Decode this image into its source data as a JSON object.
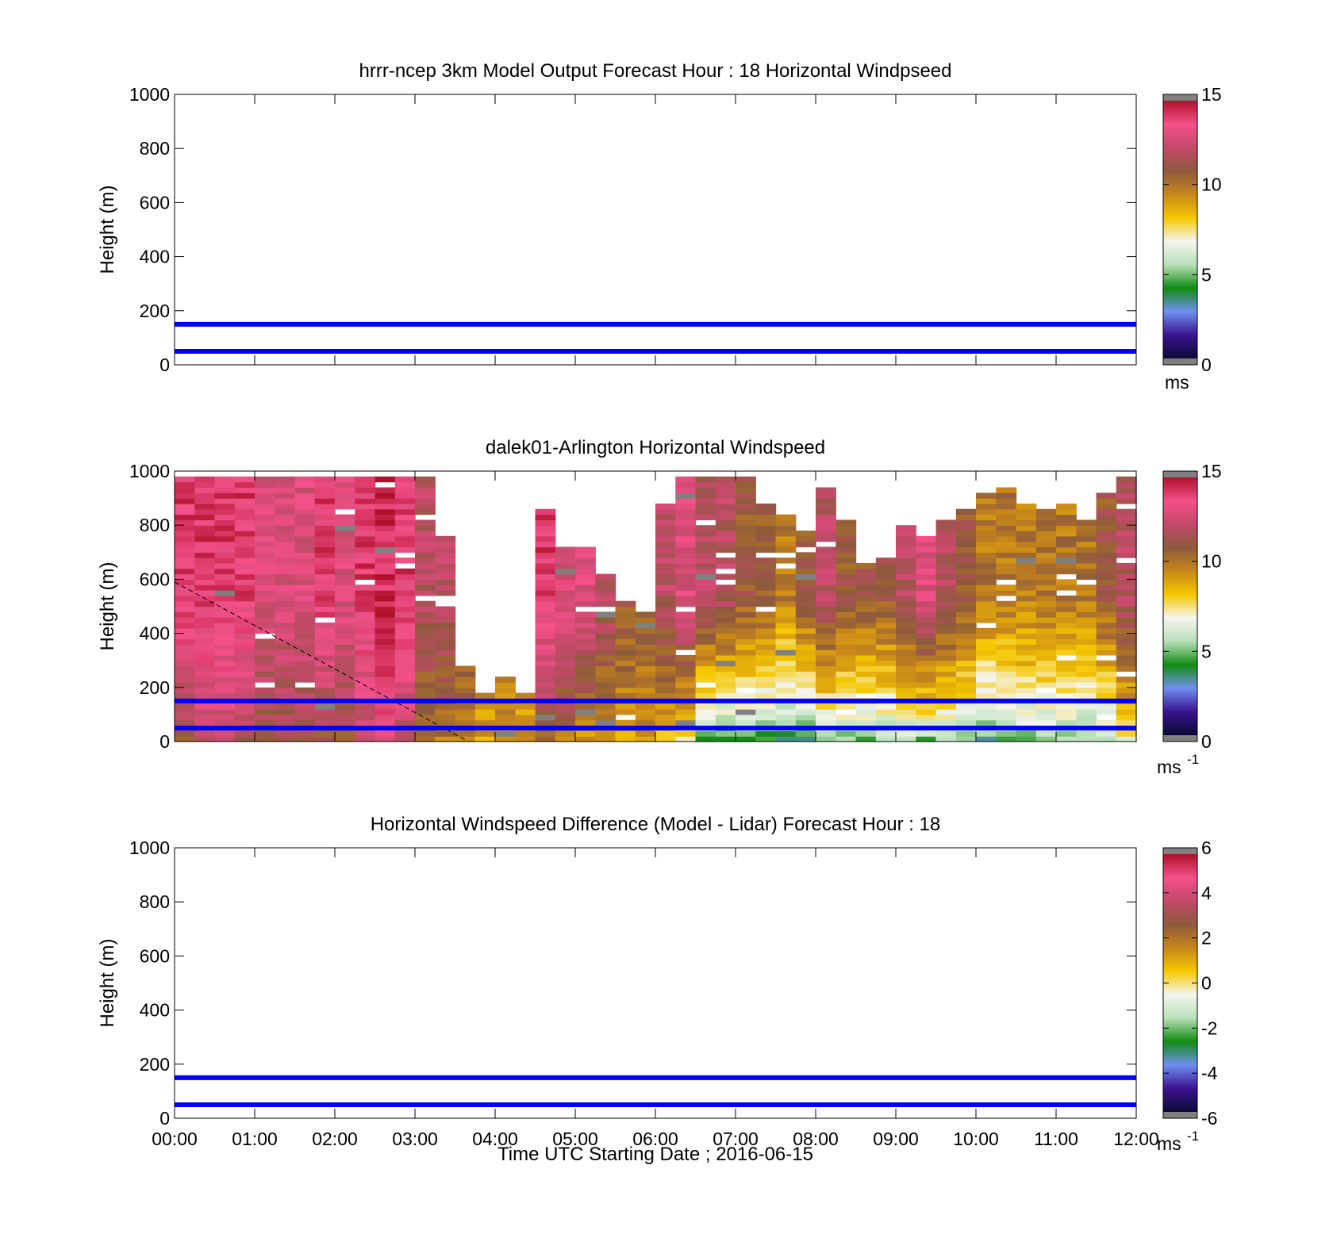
{
  "figure": {
    "xlabel": "Time UTC  Starting Date ; 2016-06-15"
  },
  "chart_data": [
    {
      "type": "heatmap",
      "title": "hrrr-ncep 3km Model Output   Forecast Hour : 18 Horizontal Windpseed",
      "ylabel": "Height (m)",
      "xlabel": "",
      "ylim": [
        0,
        1000
      ],
      "yticks": [
        "0",
        "200",
        "400",
        "600",
        "800",
        "1000"
      ],
      "xlim": [
        "00:00",
        "12:00"
      ],
      "xtick_labels_shown": false,
      "data": "empty",
      "reference_lines": [
        {
          "height_m": 150,
          "color": "#0000ff"
        },
        {
          "height_m": 50,
          "color": "#0000ff"
        }
      ],
      "colorbar": {
        "range": [
          0,
          15
        ],
        "ticks": [
          "0",
          "5",
          "10",
          "15"
        ],
        "unit": "ms",
        "unit_sup": "",
        "colors": [
          "#808080",
          "#0b0b35",
          "#3a1290",
          "#6f8ff0",
          "#128c12",
          "#b8e0b8",
          "#f5f5f0",
          "#f5c800",
          "#c8861a",
          "#8d5a3c",
          "#c44a6a",
          "#f4508a",
          "#b0102a",
          "#808080"
        ]
      }
    },
    {
      "type": "heatmap",
      "title": "dalek01-Arlington  Horizontal Windspeed",
      "ylabel": "Height (m)",
      "xlabel": "",
      "ylim": [
        0,
        1000
      ],
      "yticks": [
        "0",
        "200",
        "400",
        "600",
        "800",
        "1000"
      ],
      "xlim": [
        "00:00",
        "12:00"
      ],
      "xtick_labels_shown": false,
      "time_step_minutes": 15,
      "height_bin_m": 20,
      "columns": [
        {
          "t": "00:00",
          "top_m": 1000,
          "low": 11,
          "high": 14
        },
        {
          "t": "00:15",
          "top_m": 1000,
          "low": 12,
          "high": 14
        },
        {
          "t": "00:30",
          "top_m": 1000,
          "low": 12,
          "high": 14
        },
        {
          "t": "00:45",
          "top_m": 1000,
          "low": 11,
          "high": 14
        },
        {
          "t": "01:00",
          "top_m": 1000,
          "low": 11,
          "high": 13
        },
        {
          "t": "01:15",
          "top_m": 1000,
          "low": 11,
          "high": 13
        },
        {
          "t": "01:30",
          "top_m": 1000,
          "low": 11,
          "high": 13
        },
        {
          "t": "01:45",
          "top_m": 1000,
          "low": 11,
          "high": 14
        },
        {
          "t": "02:00",
          "top_m": 1000,
          "low": 11,
          "high": 13
        },
        {
          "t": "02:15",
          "top_m": 1000,
          "low": 12,
          "high": 14
        },
        {
          "t": "02:30",
          "top_m": 1000,
          "low": 13,
          "high": 14.5
        },
        {
          "t": "02:45",
          "top_m": 1000,
          "low": 12,
          "high": 14
        },
        {
          "t": "03:00",
          "top_m": 1000,
          "low": 10,
          "high": 12
        },
        {
          "t": "03:15",
          "top_m": 780,
          "low": 10,
          "high": 12
        },
        {
          "t": "03:30",
          "top_m": 300,
          "low": 10,
          "high": 11
        },
        {
          "t": "03:45",
          "top_m": 200,
          "low": 9,
          "high": 10
        },
        {
          "t": "04:00",
          "top_m": 260,
          "low": 9,
          "high": 10
        },
        {
          "t": "04:15",
          "top_m": 200,
          "low": 9,
          "high": 10
        },
        {
          "t": "04:30",
          "top_m": 880,
          "low": 10,
          "high": 14
        },
        {
          "t": "04:45",
          "top_m": 740,
          "low": 10,
          "high": 13
        },
        {
          "t": "05:00",
          "top_m": 740,
          "low": 9,
          "high": 13
        },
        {
          "t": "05:15",
          "top_m": 640,
          "low": 9,
          "high": 12
        },
        {
          "t": "05:30",
          "top_m": 540,
          "low": 9,
          "high": 11
        },
        {
          "t": "05:45",
          "top_m": 500,
          "low": 9,
          "high": 11
        },
        {
          "t": "06:00",
          "top_m": 900,
          "low": 8,
          "high": 12
        },
        {
          "t": "06:15",
          "top_m": 1000,
          "low": 7,
          "high": 13
        },
        {
          "t": "06:30",
          "top_m": 1000,
          "low": 4,
          "high": 12
        },
        {
          "t": "06:45",
          "top_m": 1000,
          "low": 4,
          "high": 12
        },
        {
          "t": "07:00",
          "top_m": 1000,
          "low": 4,
          "high": 11
        },
        {
          "t": "07:15",
          "top_m": 900,
          "low": 4,
          "high": 11
        },
        {
          "t": "07:30",
          "top_m": 860,
          "low": 4,
          "high": 10
        },
        {
          "t": "07:45",
          "top_m": 800,
          "low": 4,
          "high": 11
        },
        {
          "t": "08:00",
          "top_m": 960,
          "low": 5,
          "high": 12
        },
        {
          "t": "08:15",
          "top_m": 840,
          "low": 5,
          "high": 11
        },
        {
          "t": "08:30",
          "top_m": 680,
          "low": 5,
          "high": 11
        },
        {
          "t": "08:45",
          "top_m": 700,
          "low": 5,
          "high": 11
        },
        {
          "t": "09:00",
          "top_m": 820,
          "low": 5,
          "high": 12
        },
        {
          "t": "09:15",
          "top_m": 780,
          "low": 5,
          "high": 13
        },
        {
          "t": "09:30",
          "top_m": 840,
          "low": 5,
          "high": 12
        },
        {
          "t": "09:45",
          "top_m": 880,
          "low": 5,
          "high": 11
        },
        {
          "t": "10:00",
          "top_m": 940,
          "low": 4,
          "high": 10
        },
        {
          "t": "10:15",
          "top_m": 960,
          "low": 5,
          "high": 10
        },
        {
          "t": "10:30",
          "top_m": 900,
          "low": 5,
          "high": 10
        },
        {
          "t": "10:45",
          "top_m": 880,
          "low": 5,
          "high": 10
        },
        {
          "t": "11:00",
          "top_m": 900,
          "low": 5,
          "high": 10
        },
        {
          "t": "11:15",
          "top_m": 840,
          "low": 5,
          "high": 10
        },
        {
          "t": "11:30",
          "top_m": 940,
          "low": 5,
          "high": 11
        },
        {
          "t": "11:45",
          "top_m": 1000,
          "low": 7,
          "high": 12
        }
      ],
      "dashed_line": {
        "start": {
          "t": "00:00",
          "height_m": 590
        },
        "end": {
          "t": "03:40",
          "height_m": 0
        }
      },
      "reference_lines": [
        {
          "height_m": 150,
          "color": "#0000ff"
        },
        {
          "height_m": 50,
          "color": "#0000ff"
        }
      ],
      "colorbar": {
        "range": [
          0,
          15
        ],
        "ticks": [
          "0",
          "5",
          "10",
          "15"
        ],
        "unit": "ms",
        "unit_sup": "-1",
        "colors": [
          "#808080",
          "#0b0b35",
          "#3a1290",
          "#6f8ff0",
          "#128c12",
          "#b8e0b8",
          "#f5f5f0",
          "#f5c800",
          "#c8861a",
          "#8d5a3c",
          "#c44a6a",
          "#f4508a",
          "#b0102a",
          "#808080"
        ]
      }
    },
    {
      "type": "heatmap",
      "title": "Horizontal Windspeed Difference (Model - Lidar) Forecast Hour : 18",
      "ylabel": "Height (m)",
      "xlabel": "Time UTC  Starting Date ; 2016-06-15",
      "ylim": [
        0,
        1000
      ],
      "yticks": [
        "0",
        "200",
        "400",
        "600",
        "800",
        "1000"
      ],
      "xlim": [
        "00:00",
        "12:00"
      ],
      "xtick_labels_shown": true,
      "xticks": [
        "00:00",
        "01:00",
        "02:00",
        "03:00",
        "04:00",
        "05:00",
        "06:00",
        "07:00",
        "08:00",
        "09:00",
        "10:00",
        "11:00",
        "12:00"
      ],
      "data": "empty",
      "reference_lines": [
        {
          "height_m": 150,
          "color": "#0000ff"
        },
        {
          "height_m": 50,
          "color": "#0000ff"
        }
      ],
      "colorbar": {
        "range": [
          -6,
          6
        ],
        "ticks": [
          "-6",
          "-4",
          "-2",
          "0",
          "2",
          "4",
          "6"
        ],
        "unit": "ms",
        "unit_sup": "-1",
        "colors": [
          "#808080",
          "#0b0b35",
          "#3a1290",
          "#6f8ff0",
          "#128c12",
          "#b8e0b8",
          "#f5f5f0",
          "#f5c800",
          "#c8861a",
          "#8d5a3c",
          "#c44a6a",
          "#f4508a",
          "#b0102a",
          "#808080"
        ]
      }
    }
  ]
}
